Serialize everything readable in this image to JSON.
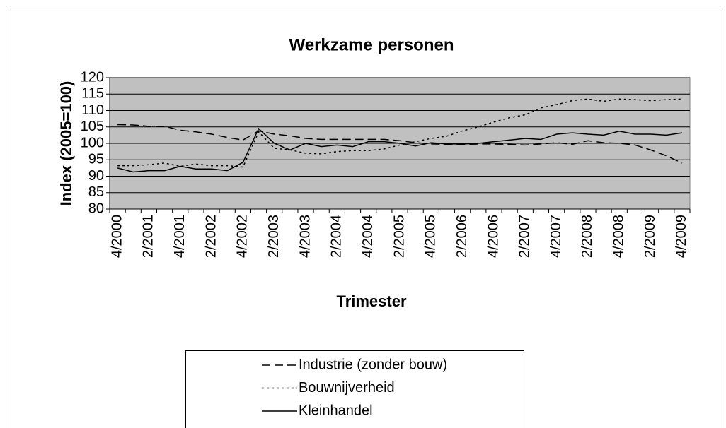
{
  "chart_data": {
    "type": "line",
    "title": "Werkzame personen",
    "xlabel": "Trimester",
    "ylabel": "Index (2005=100)",
    "categories": [
      "4/2000",
      null,
      "2/2001",
      null,
      "4/2001",
      null,
      "2/2002",
      null,
      "4/2002",
      null,
      "2/2003",
      null,
      "4/2003",
      null,
      "2/2004",
      null,
      "4/2004",
      null,
      "2/2005",
      null,
      "4/2005",
      null,
      "2/2006",
      null,
      "4/2006",
      null,
      "2/2007",
      null,
      "4/2007",
      null,
      "2/2008",
      null,
      "4/2008",
      null,
      "2/2009",
      null,
      "4/2009"
    ],
    "series": [
      {
        "name": "Industrie (zonder bouw)",
        "color": "#000000",
        "dash": "dashed",
        "values": [
          105.7,
          105.6,
          105.2,
          105.2,
          104,
          103.5,
          102.8,
          101.8,
          101.0,
          103.8,
          102.8,
          102.3,
          101.5,
          101.2,
          101.2,
          101.2,
          101.2,
          101.2,
          100.8,
          100.2,
          99.8,
          99.7,
          99.7,
          99.8,
          99.8,
          99.7,
          99.5,
          99.8,
          100.2,
          99.7,
          100.8,
          100.2,
          100.0,
          99.5,
          98,
          96.2,
          94
        ]
      },
      {
        "name": "Bouwnijverheid",
        "color": "#000000",
        "dash": "dotted",
        "values": [
          93.2,
          93.2,
          93.5,
          94,
          93,
          93.7,
          93.2,
          93.2,
          92.8,
          103.5,
          98.5,
          98,
          97,
          96.8,
          97.5,
          97.8,
          97.8,
          98.3,
          99.5,
          100.5,
          101.5,
          102.2,
          103.8,
          105,
          106.5,
          107.8,
          108.7,
          110.8,
          111.8,
          113,
          113.5,
          112.8,
          113.5,
          113.3,
          113,
          113.3,
          113.5
        ]
      },
      {
        "name": "Kleinhandel",
        "color": "#000000",
        "dash": "solid",
        "values": [
          92.5,
          91.3,
          91.7,
          91.7,
          93,
          92.2,
          92.2,
          91.7,
          94.2,
          104.5,
          100,
          98,
          100,
          99,
          99.5,
          99,
          100.5,
          100.5,
          100,
          99.2,
          100.2,
          99.8,
          99.8,
          100,
          100.5,
          101,
          101.5,
          101.2,
          102.8,
          103.2,
          102.8,
          102.5,
          103.7,
          102.8,
          102.8,
          102.5,
          103.2
        ]
      }
    ],
    "ylim": [
      80,
      120
    ],
    "yticks": [
      80,
      85,
      90,
      95,
      100,
      105,
      110,
      115,
      120
    ],
    "grid": true,
    "legend": "bottom",
    "plot_background": "#c0c0c0"
  }
}
